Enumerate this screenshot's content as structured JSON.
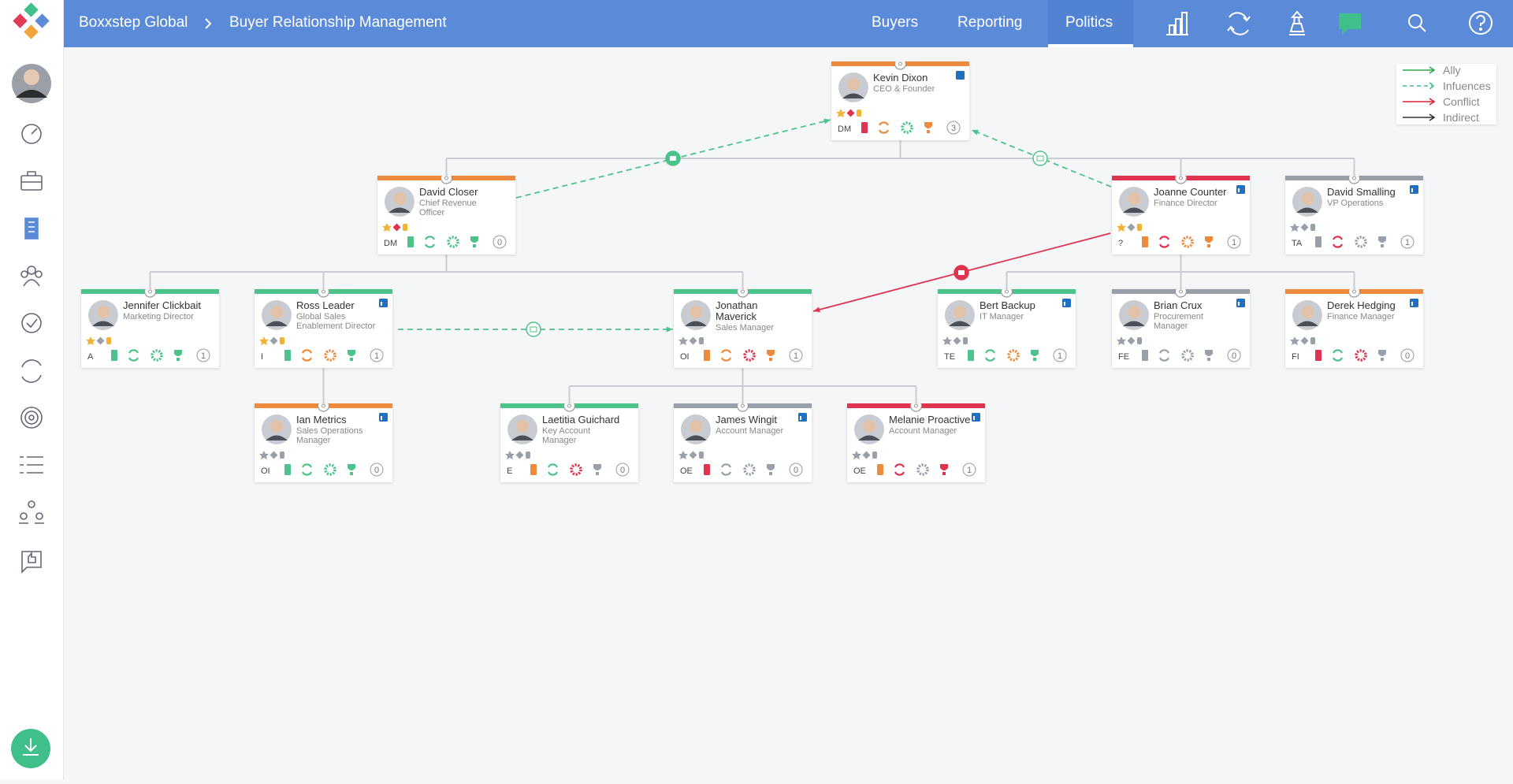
{
  "header": {
    "brand": "Boxxstep Global",
    "page": "Buyer Relationship Management",
    "nav": [
      "Buyers",
      "Reporting",
      "Politics"
    ]
  },
  "legend": [
    "Ally",
    "Infuences",
    "Conflict",
    "Indirect"
  ],
  "nodes": [
    {
      "name": "Kevin Dixon",
      "title": "CEO & Founder",
      "code": "DM",
      "count": 3
    },
    {
      "name": "David Closer",
      "title": "Chief Revenue Officer",
      "code": "DM",
      "count": 0
    },
    {
      "name": "Joanne Counter",
      "title": "Finance Director",
      "code": "?",
      "count": 1
    },
    {
      "name": "David Smalling",
      "title": "VP Operations",
      "code": "TA",
      "count": 1
    },
    {
      "name": "Jennifer Clickbait",
      "title": "Marketing Director",
      "code": "A",
      "count": 1
    },
    {
      "name": "Ross Leader",
      "title": "Global Sales Enablement Director",
      "code": "I",
      "count": 1
    },
    {
      "name": "Jonathan Maverick",
      "title": "Sales Manager",
      "code": "OI",
      "count": 1
    },
    {
      "name": "Bert Backup",
      "title": "IT Manager",
      "code": "TE",
      "count": 1
    },
    {
      "name": "Brian Crux",
      "title": "Procurement Manager",
      "code": "FE",
      "count": 0
    },
    {
      "name": "Derek Hedging",
      "title": "Finance Manager",
      "code": "FI",
      "count": 0
    },
    {
      "name": "Ian Metrics",
      "title": "Sales Operations Manager",
      "code": "OI",
      "count": 0
    },
    {
      "name": "Laetitia Guichard",
      "title": "Key Account Manager",
      "code": "E",
      "count": 0
    },
    {
      "name": "James Wingit",
      "title": "Account Manager",
      "code": "OE",
      "count": 0
    },
    {
      "name": "Melanie Proactive",
      "title": "Account Manager",
      "code": "OE",
      "count": 1
    }
  ]
}
